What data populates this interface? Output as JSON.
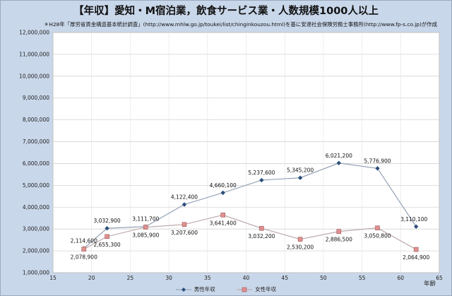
{
  "chart_data": {
    "type": "line",
    "title": "【年収】愛知・M宿泊業，飲食サービス業・人数規模1000人以上",
    "subtitle": "＊H28年「厚労省賃金構造基本統計調査」(http://www.mhlw.go.jp/toukei/list/chinginkouzou.html)を基に安達社会保険労務士事務所(http://www.fp-s.co.jp)が作成",
    "xlabel": "年齢",
    "ylabel": "",
    "xlim": [
      15,
      65
    ],
    "ylim": [
      1000000,
      12000000
    ],
    "xticks": [
      15,
      20,
      25,
      30,
      35,
      40,
      45,
      50,
      55,
      60,
      65
    ],
    "xtick_labels": [
      "15",
      "20",
      "25",
      "30",
      "35",
      "40",
      "45",
      "50",
      "55",
      "60",
      "65"
    ],
    "yticks": [
      1000000,
      2000000,
      3000000,
      4000000,
      5000000,
      6000000,
      7000000,
      8000000,
      9000000,
      10000000,
      11000000,
      12000000
    ],
    "ytick_labels": [
      "1,000,000",
      "2,000,000",
      "3,000,000",
      "4,000,000",
      "5,000,000",
      "6,000,000",
      "7,000,000",
      "8,000,000",
      "9,000,000",
      "10,000,000",
      "11,000,000",
      "12,000,000"
    ],
    "grid": true,
    "legend_position": "bottom",
    "series": [
      {
        "name": "男性年収",
        "color": "#8a9bb0",
        "marker_color": "#2c4f7c",
        "marker": "diamond",
        "x": [
          19,
          22,
          27,
          32,
          37,
          42,
          47,
          52,
          57,
          62
        ],
        "values": [
          2114600,
          3032900,
          3111700,
          4122400,
          4660100,
          5237600,
          5345200,
          6021200,
          5776900,
          3110100
        ],
        "labels": [
          "2,114,600",
          "3,032,900",
          "3,111,700",
          "4,122,400",
          "4,660,100",
          "5,237,600",
          "5,345,200",
          "6,021,200",
          "5,776,900",
          "3,110,100"
        ]
      },
      {
        "name": "女性年収",
        "color": "#b9a3a6",
        "marker_color": "#e08f8f",
        "marker": "square",
        "x": [
          19,
          22,
          27,
          32,
          37,
          42,
          47,
          52,
          57,
          62
        ],
        "values": [
          2078900,
          2655300,
          3085900,
          3207600,
          3641400,
          3032200,
          2530200,
          2886500,
          3050800,
          2064900
        ],
        "labels": [
          "2,078,900",
          "2,655,300",
          "3,085,900",
          "3,207,600",
          "3,641,400",
          "3,032,200",
          "2,530,200",
          "2,886,500",
          "3,050,800",
          "2,064,900"
        ]
      }
    ]
  }
}
